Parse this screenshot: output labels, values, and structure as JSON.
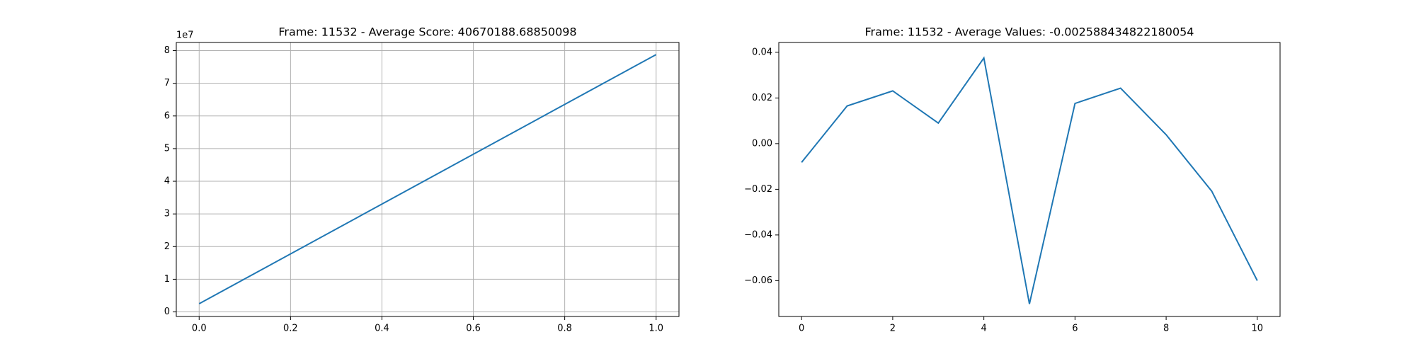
{
  "chart_data": [
    {
      "type": "line",
      "title": "Frame: 11532 - Average Score: 40670188.68850098",
      "x": [
        0,
        1
      ],
      "series": [
        {
          "color": "#1f77b4",
          "values": [
            2500000,
            78800000
          ]
        }
      ],
      "xlim": [
        -0.05,
        1.05
      ],
      "xticks": [
        {
          "value": 0,
          "label": "0.0"
        },
        {
          "value": 0.2,
          "label": "0.2"
        },
        {
          "value": 0.4,
          "label": "0.4"
        },
        {
          "value": 0.6,
          "label": "0.6"
        },
        {
          "value": 0.8,
          "label": "0.8"
        },
        {
          "value": 1,
          "label": "1.0"
        }
      ],
      "ylim": [
        -1400000,
        82500000
      ],
      "yticks": [
        {
          "value": 0,
          "label": "0"
        },
        {
          "value": 10000000,
          "label": "1"
        },
        {
          "value": 20000000,
          "label": "2"
        },
        {
          "value": 30000000,
          "label": "3"
        },
        {
          "value": 40000000,
          "label": "4"
        },
        {
          "value": 50000000,
          "label": "5"
        },
        {
          "value": 60000000,
          "label": "6"
        },
        {
          "value": 70000000,
          "label": "7"
        },
        {
          "value": 80000000,
          "label": "8"
        }
      ],
      "y_offset_label": "1e7",
      "grid": true
    },
    {
      "type": "line",
      "title": "Frame: 11532 - Average Values: -0.002588434822180054",
      "x": [
        0,
        1,
        2,
        3,
        4,
        5,
        6,
        7,
        8,
        9,
        10
      ],
      "series": [
        {
          "color": "#1f77b4",
          "values": [
            -0.0082,
            0.0165,
            0.0231,
            0.009,
            0.0375,
            -0.0702,
            0.0176,
            0.0243,
            0.0039,
            -0.0208,
            -0.06
          ]
        }
      ],
      "xlim": [
        -0.5,
        10.5
      ],
      "xticks": [
        0,
        2,
        4,
        6,
        8,
        10
      ],
      "ylim": [
        -0.0757,
        0.0443
      ],
      "yticks": [
        {
          "value": -0.06,
          "label": "−0.06"
        },
        {
          "value": -0.04,
          "label": "−0.04"
        },
        {
          "value": -0.02,
          "label": "−0.02"
        },
        {
          "value": 0,
          "label": "0.00"
        },
        {
          "value": 0.02,
          "label": "0.02"
        },
        {
          "value": 0.04,
          "label": "0.04"
        }
      ],
      "grid": false
    }
  ]
}
